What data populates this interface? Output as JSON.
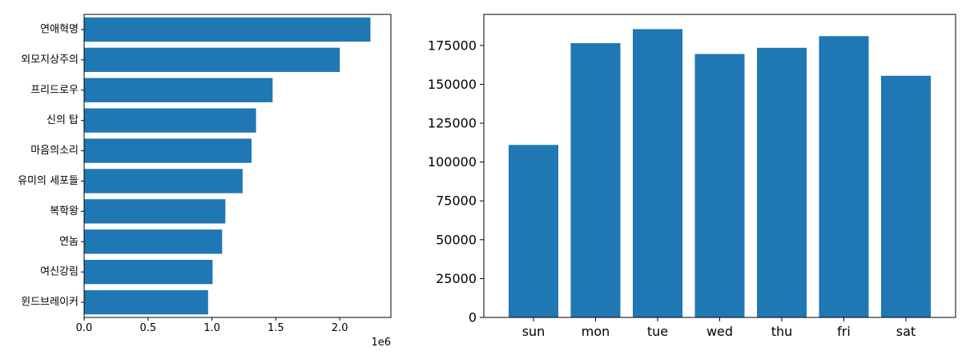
{
  "colors": {
    "bar": "#1f77b4",
    "axis": "#000000",
    "background": "#ffffff"
  },
  "chart_data": [
    {
      "type": "bar",
      "orientation": "horizontal",
      "categories": [
        "연애혁명",
        "외모지상주의",
        "프리드로우",
        "신의 탑",
        "마음의소리",
        "유미의 세포들",
        "복학왕",
        "연놈",
        "여신강림",
        "윈드브레이커"
      ],
      "values": [
        2240000,
        2000000,
        1475000,
        1345000,
        1310000,
        1240000,
        1105000,
        1080000,
        1005000,
        970000
      ],
      "xlim": [
        0,
        2400000
      ],
      "xticks": [
        0,
        500000,
        1000000,
        1500000,
        2000000
      ],
      "xtick_labels": [
        "0.0",
        "0.5",
        "1.0",
        "1.5",
        "2.0"
      ],
      "offset_label": "1e6",
      "title": "",
      "xlabel": "",
      "ylabel": "",
      "grid": false
    },
    {
      "type": "bar",
      "orientation": "vertical",
      "categories": [
        "sun",
        "mon",
        "tue",
        "wed",
        "thu",
        "fri",
        "sat"
      ],
      "values": [
        111000,
        176500,
        185500,
        169500,
        173500,
        181000,
        155500
      ],
      "ylim": [
        0,
        195000
      ],
      "yticks": [
        0,
        25000,
        50000,
        75000,
        100000,
        125000,
        150000,
        175000
      ],
      "ytick_labels": [
        "0",
        "25000",
        "50000",
        "75000",
        "100000",
        "125000",
        "150000",
        "175000"
      ],
      "title": "",
      "xlabel": "",
      "ylabel": "",
      "grid": false
    }
  ]
}
